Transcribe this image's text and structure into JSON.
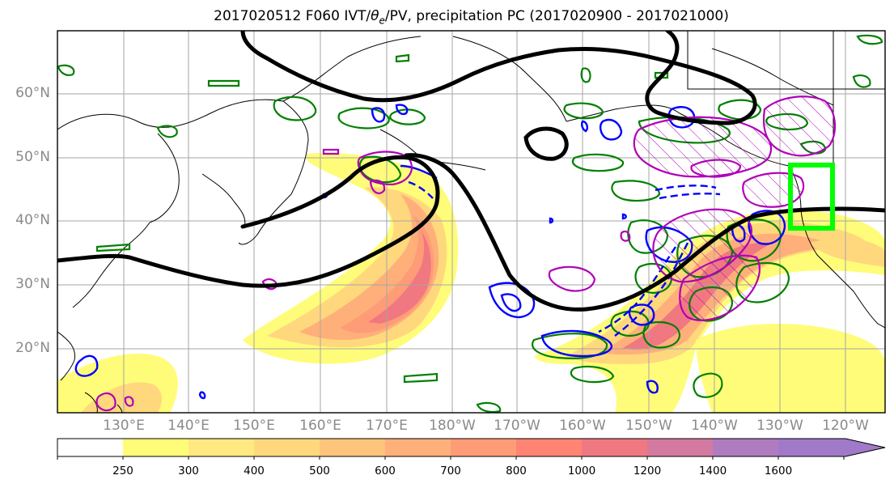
{
  "title": {
    "prefix": "2017020512 F060 IVT/",
    "theta": "θ",
    "sub": "e",
    "suffix": "/PV, precipitation PC (2017020900 - 2017021000)"
  },
  "lat_labels": [
    "60°N",
    "50°N",
    "40°N",
    "30°N",
    "20°N"
  ],
  "lon_labels": [
    "130°E",
    "140°E",
    "150°E",
    "160°E",
    "170°E",
    "180°W",
    "170°W",
    "160°W",
    "150°W",
    "140°W",
    "130°W",
    "120°W"
  ],
  "colorbar": {
    "ticks": [
      "250",
      "300",
      "400",
      "500",
      "600",
      "700",
      "800",
      "1000",
      "1200",
      "1400",
      "1600"
    ],
    "colors": [
      "#ffffff",
      "#fffc7a",
      "#ffe980",
      "#ffd87e",
      "#ffc47c",
      "#ffb07a",
      "#ff9c78",
      "#ff8474",
      "#f07880",
      "#d47aa0",
      "#b07cc0",
      "#a07ac8"
    ]
  },
  "colors": {
    "theta_e_contour": "#008000",
    "pv_positive_contour": "#0000ff",
    "precip_pc_contour": "#b000b8",
    "height_contour": "#000000",
    "target_box": "#00ff00"
  }
}
